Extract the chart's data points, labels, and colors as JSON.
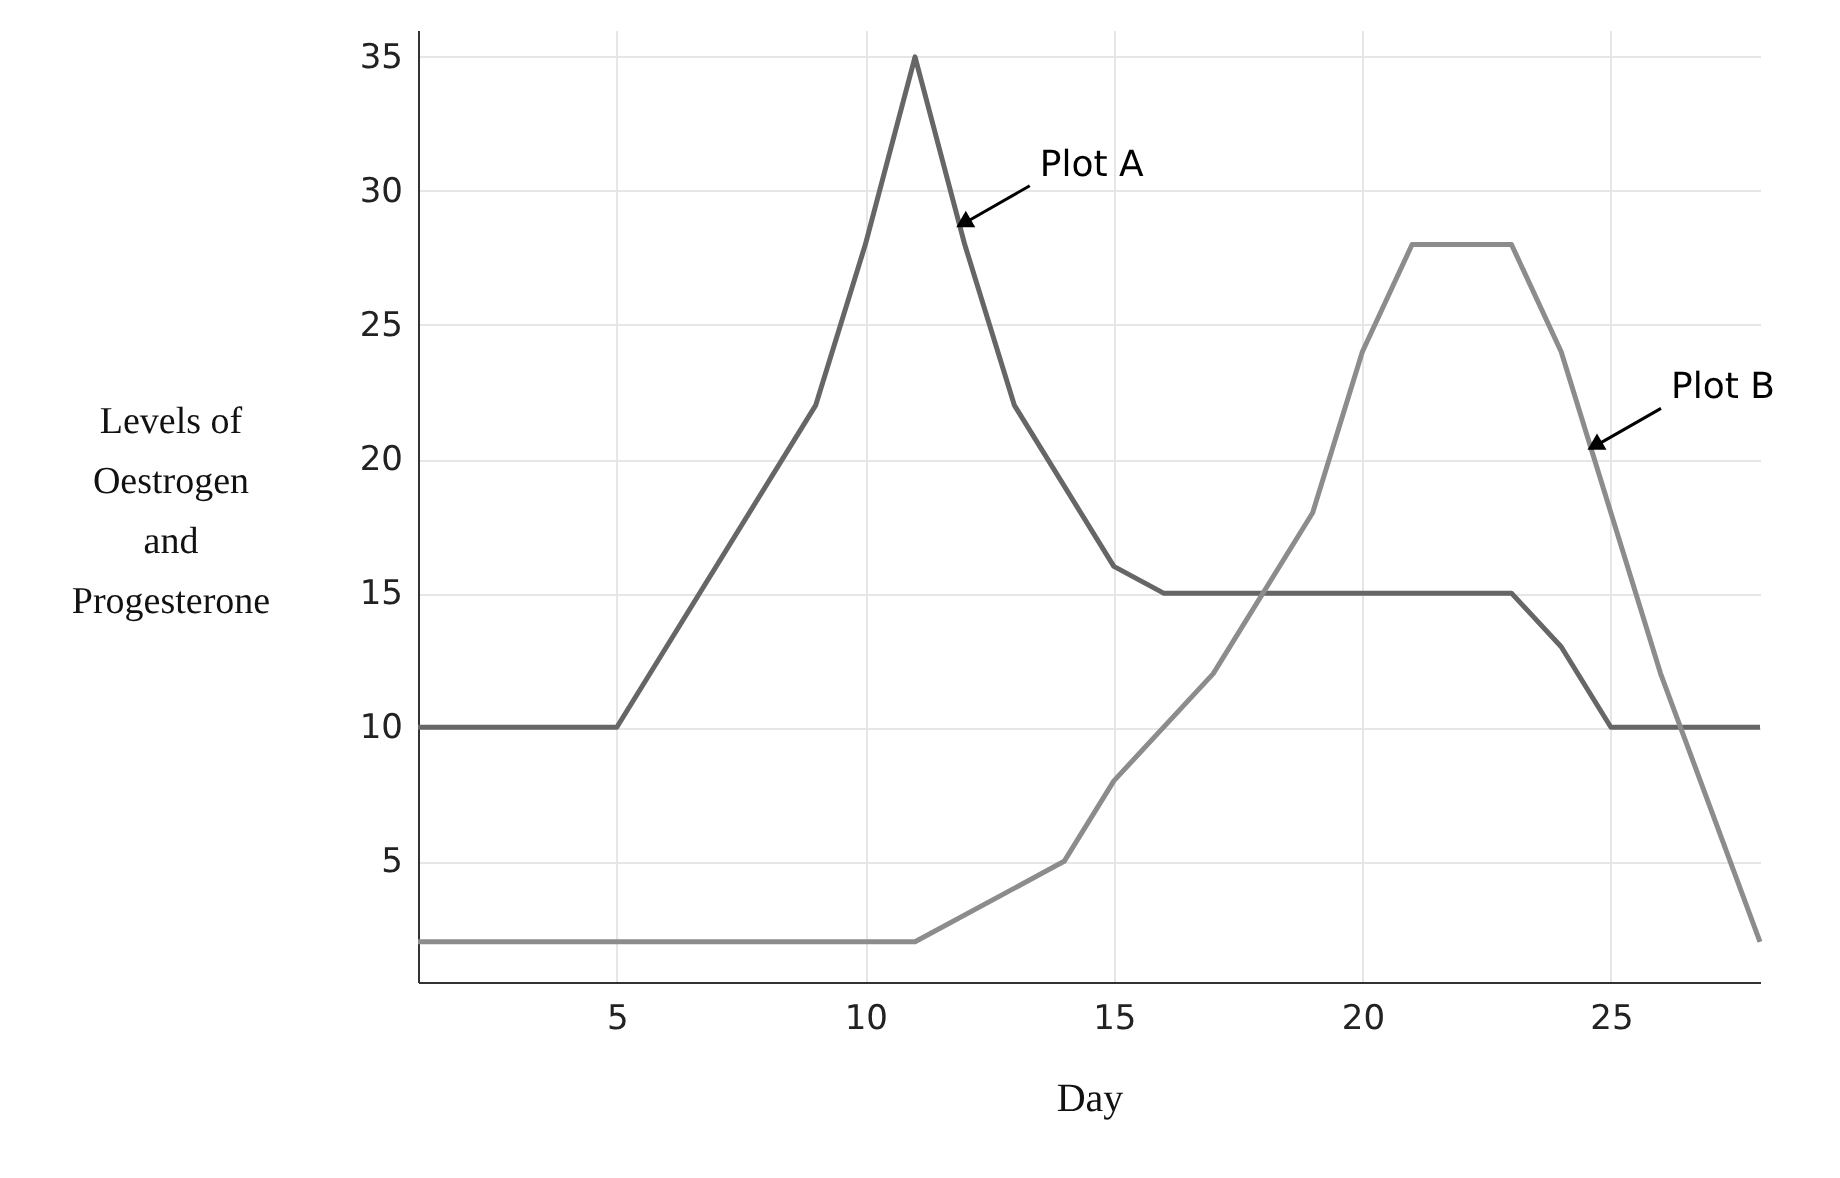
{
  "chart_data": {
    "type": "line",
    "xlabel": "Day",
    "ylabel": "Levels of\nOestrogen\nand\nProgesterone",
    "xlim": [
      1,
      28
    ],
    "ylim": [
      0.5,
      36
    ],
    "xticks": [
      5,
      10,
      15,
      20,
      25
    ],
    "yticks": [
      5,
      10,
      15,
      20,
      25,
      30,
      35
    ],
    "grid": true,
    "marker": "none",
    "series": [
      {
        "color": "#666666",
        "x": [
          1,
          5,
          9,
          10,
          11,
          12,
          13,
          15,
          16,
          23,
          24,
          25,
          28
        ],
        "values": [
          10,
          10,
          22,
          28,
          35,
          28,
          22,
          16,
          15,
          15,
          13,
          10,
          10
        ]
      },
      {
        "color": "#8c8c8c",
        "x": [
          1,
          11,
          14,
          15,
          17,
          19,
          20,
          21,
          23,
          24,
          26,
          28
        ],
        "values": [
          2,
          2,
          5,
          8,
          12,
          18,
          24,
          28,
          28,
          24,
          12,
          2
        ]
      }
    ],
    "annotations": [
      {
        "text": "Plot A",
        "x": 11.9,
        "y": 28.7
      },
      {
        "text": "Plot B",
        "x": 24.6,
        "y": 20.4
      }
    ]
  }
}
